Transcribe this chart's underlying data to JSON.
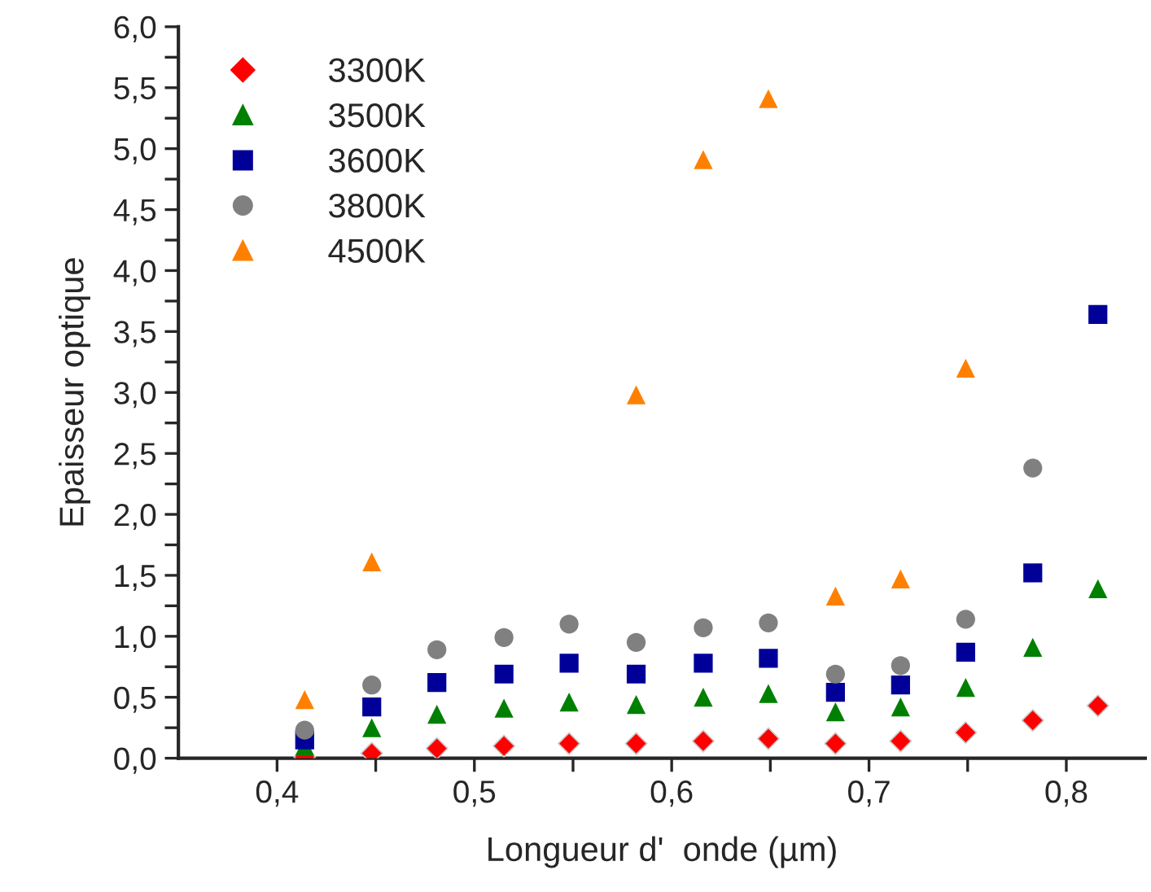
{
  "chart_data": {
    "type": "scatter",
    "xlabel": "Longueur d'  onde (µm)",
    "ylabel": "Epaisseur optique",
    "x": [
      0.414,
      0.448,
      0.481,
      0.515,
      0.548,
      0.582,
      0.616,
      0.649,
      0.683,
      0.716,
      0.749,
      0.783,
      0.816
    ],
    "series": [
      {
        "name": "3300K",
        "color": "#ff0000",
        "marker": "diamond",
        "values": [
          0.01,
          0.04,
          0.08,
          0.1,
          0.12,
          0.12,
          0.14,
          0.16,
          0.12,
          0.14,
          0.21,
          0.31,
          0.43
        ]
      },
      {
        "name": "3500K",
        "color": "#008000",
        "marker": "triangle",
        "values": [
          0.1,
          0.25,
          0.36,
          0.41,
          0.46,
          0.44,
          0.5,
          0.53,
          0.38,
          0.42,
          0.58,
          0.91,
          1.39
        ]
      },
      {
        "name": "3600K",
        "color": "#000099",
        "marker": "square",
        "values": [
          0.15,
          0.42,
          0.62,
          0.69,
          0.78,
          0.69,
          0.78,
          0.82,
          0.54,
          0.6,
          0.87,
          1.52,
          3.64
        ]
      },
      {
        "name": "3800K",
        "color": "#808080",
        "marker": "circle",
        "values": [
          0.23,
          0.6,
          0.89,
          0.99,
          1.1,
          0.95,
          1.07,
          1.11,
          0.69,
          0.76,
          1.14,
          2.38,
          null
        ]
      },
      {
        "name": "4500K",
        "color": "#ff8000",
        "marker": "triangle",
        "values": [
          0.48,
          1.61,
          null,
          null,
          null,
          2.98,
          4.91,
          5.41,
          1.33,
          1.47,
          3.2,
          null,
          null
        ]
      }
    ],
    "xlim": [
      0.35,
      0.84
    ],
    "xticks": [
      {
        "value": 0.4,
        "label": "0,4"
      },
      {
        "value": 0.45,
        "label": null
      },
      {
        "value": 0.5,
        "label": "0,5"
      },
      {
        "value": 0.55,
        "label": null
      },
      {
        "value": 0.6,
        "label": "0,6"
      },
      {
        "value": 0.65,
        "label": null
      },
      {
        "value": 0.7,
        "label": "0,7"
      },
      {
        "value": 0.75,
        "label": null
      },
      {
        "value": 0.8,
        "label": "0,8"
      }
    ],
    "ylim": [
      0,
      6
    ],
    "yticks": [
      {
        "value": 0,
        "label": "0,0"
      },
      {
        "value": 0.25,
        "label": null
      },
      {
        "value": 0.5,
        "label": "0,5"
      },
      {
        "value": 0.75,
        "label": null
      },
      {
        "value": 1,
        "label": "1,0"
      },
      {
        "value": 1.25,
        "label": null
      },
      {
        "value": 1.5,
        "label": "1,5"
      },
      {
        "value": 1.75,
        "label": null
      },
      {
        "value": 2,
        "label": "2,0"
      },
      {
        "value": 2.25,
        "label": null
      },
      {
        "value": 2.5,
        "label": "2,5"
      },
      {
        "value": 2.75,
        "label": null
      },
      {
        "value": 3,
        "label": "3,0"
      },
      {
        "value": 3.25,
        "label": null
      },
      {
        "value": 3.5,
        "label": "3,5"
      },
      {
        "value": 3.75,
        "label": null
      },
      {
        "value": 4,
        "label": "4,0"
      },
      {
        "value": 4.25,
        "label": null
      },
      {
        "value": 4.5,
        "label": "4,5"
      },
      {
        "value": 4.75,
        "label": null
      },
      {
        "value": 5,
        "label": "5,0"
      },
      {
        "value": 5.25,
        "label": null
      },
      {
        "value": 5.5,
        "label": "5,5"
      },
      {
        "value": 5.75,
        "label": null
      },
      {
        "value": 6,
        "label": "6,0"
      }
    ],
    "legend": "top left",
    "grid": false
  }
}
